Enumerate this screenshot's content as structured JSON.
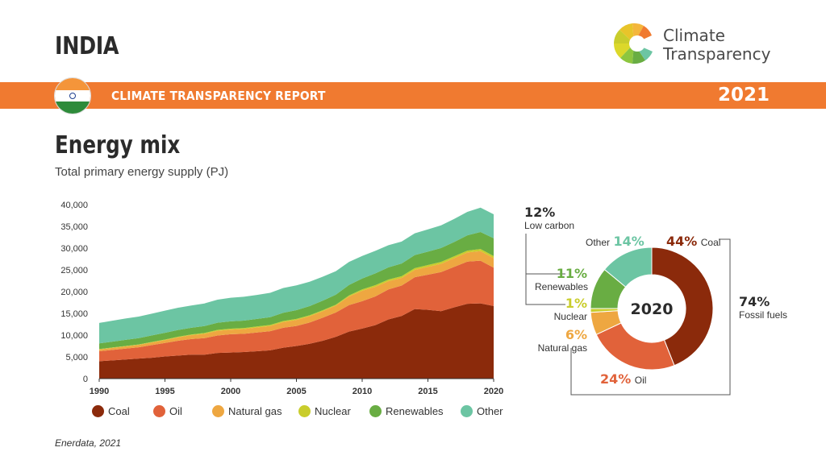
{
  "header": {
    "country": "INDIA",
    "logo_line1": "Climate",
    "logo_line2": "Transparency",
    "banner_title": "CLIMATE TRANSPARENCY REPORT",
    "year": "2021"
  },
  "section": {
    "title": "Energy mix",
    "subtitle": "Total primary energy supply (PJ)",
    "source": "Enerdata, 2021"
  },
  "colors": {
    "coal": "#8b2a0b",
    "oil": "#e1623a",
    "natural_gas": "#eea741",
    "nuclear": "#c9cd2c",
    "renewables": "#69ad43",
    "other": "#6cc5a3",
    "banner": "#f07a30"
  },
  "chart_data": [
    {
      "type": "area",
      "stacked": true,
      "x": [
        1990,
        1991,
        1992,
        1993,
        1994,
        1995,
        1996,
        1997,
        1998,
        1999,
        2000,
        2001,
        2002,
        2003,
        2004,
        2005,
        2006,
        2007,
        2008,
        2009,
        2010,
        2011,
        2012,
        2013,
        2014,
        2015,
        2016,
        2017,
        2018,
        2019,
        2020
      ],
      "x_ticks": [
        "1990",
        "1995",
        "2000",
        "2005",
        "2010",
        "2015",
        "2020"
      ],
      "y_ticks": [
        "0",
        "5,000",
        "10,000",
        "15,000",
        "20,000",
        "25,000",
        "30,000",
        "35,000",
        "40,000"
      ],
      "ylim": [
        0,
        40000
      ],
      "series": [
        {
          "name": "Coal",
          "color": "#8b2a0b",
          "values": [
            4000,
            4200,
            4400,
            4600,
            4800,
            5100,
            5300,
            5500,
            5500,
            5900,
            6000,
            6100,
            6300,
            6500,
            7100,
            7500,
            8000,
            8700,
            9600,
            10800,
            11500,
            12300,
            13600,
            14400,
            16000,
            15800,
            15500,
            16400,
            17200,
            17300,
            16700
          ]
        },
        {
          "name": "Oil",
          "color": "#e1623a",
          "values": [
            2300,
            2400,
            2500,
            2600,
            2900,
            3100,
            3400,
            3600,
            3800,
            4000,
            4200,
            4200,
            4300,
            4400,
            4600,
            4600,
            4900,
            5300,
            5600,
            6100,
            6300,
            6600,
            6900,
            7000,
            7300,
            8100,
            9000,
            9300,
            9700,
            9800,
            8800
          ]
        },
        {
          "name": "Natural gas",
          "color": "#eea741",
          "values": [
            400,
            450,
            500,
            550,
            600,
            650,
            800,
            900,
            1000,
            1100,
            1050,
            1100,
            1150,
            1200,
            1300,
            1400,
            1450,
            1500,
            1600,
            2000,
            2400,
            2200,
            1900,
            1750,
            1700,
            1800,
            1900,
            2000,
            2100,
            2200,
            2200
          ]
        },
        {
          "name": "Nuclear",
          "color": "#c9cd2c",
          "values": [
            100,
            100,
            110,
            100,
            120,
            130,
            140,
            150,
            180,
            200,
            230,
            230,
            230,
            230,
            230,
            230,
            220,
            220,
            200,
            220,
            300,
            380,
            370,
            400,
            400,
            400,
            420,
            420,
            430,
            500,
            480
          ]
        },
        {
          "name": "Renewables",
          "color": "#69ad43",
          "values": [
            1300,
            1350,
            1400,
            1450,
            1500,
            1550,
            1550,
            1550,
            1600,
            1650,
            1700,
            1700,
            1750,
            1800,
            1900,
            2000,
            2100,
            2200,
            2300,
            2400,
            2500,
            2700,
            2800,
            2900,
            3000,
            3100,
            3200,
            3300,
            3500,
            3900,
            4100
          ]
        },
        {
          "name": "Other",
          "color": "#6cc5a3",
          "values": [
            4700,
            4800,
            4900,
            4950,
            5000,
            5100,
            5100,
            5100,
            5200,
            5300,
            5400,
            5500,
            5500,
            5600,
            5700,
            5700,
            5600,
            5500,
            5400,
            5300,
            5200,
            5200,
            5100,
            5050,
            5000,
            5100,
            5200,
            5300,
            5400,
            5600,
            5500
          ]
        }
      ]
    },
    {
      "type": "pie",
      "donut": true,
      "center_label": "2020",
      "slices": [
        {
          "name": "Coal",
          "percent": 44,
          "label": "44%",
          "color": "#8b2a0b"
        },
        {
          "name": "Oil",
          "percent": 24,
          "label": "24%",
          "color": "#e1623a"
        },
        {
          "name": "Natural gas",
          "percent": 6,
          "label": "6%",
          "color": "#eea741"
        },
        {
          "name": "Nuclear",
          "percent": 1,
          "label": "1%",
          "color": "#c9cd2c"
        },
        {
          "name": "Renewables",
          "percent": 11,
          "label": "11%",
          "color": "#69ad43"
        },
        {
          "name": "Other",
          "percent": 14,
          "label": "14%",
          "color": "#6cc5a3"
        }
      ],
      "groups": [
        {
          "name": "Low carbon",
          "label": "12%"
        },
        {
          "name": "Fossil fuels",
          "label": "74%"
        }
      ]
    }
  ]
}
